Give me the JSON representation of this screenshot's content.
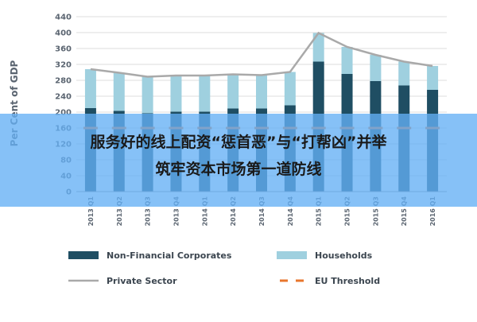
{
  "chart_data": {
    "type": "bar",
    "stacked": true,
    "categories": [
      "2013 Q1",
      "2013 Q2",
      "2013 Q3",
      "2013 Q4",
      "2014 Q1",
      "2014 Q2",
      "2014 Q3",
      "2014 Q4",
      "2015 Q1",
      "2015 Q2",
      "2015 Q3",
      "2015 Q4",
      "2016 Q1"
    ],
    "series": [
      {
        "name": "Non-Financial Corporates",
        "type": "bar",
        "color": "#1f4e63",
        "values": [
          210,
          203,
          197,
          201,
          201,
          209,
          209,
          217,
          327,
          296,
          278,
          267,
          256
        ]
      },
      {
        "name": "Households",
        "type": "bar",
        "color": "#9fd0df",
        "values": [
          98,
          96,
          92,
          91,
          91,
          86,
          84,
          84,
          72,
          68,
          66,
          60,
          60
        ]
      },
      {
        "name": "Private Sector",
        "type": "line",
        "color": "#a9a9a9",
        "values": [
          308,
          299,
          289,
          292,
          292,
          295,
          293,
          301,
          399,
          364,
          344,
          327,
          316
        ]
      },
      {
        "name": "EU Threshold",
        "type": "line-dashed",
        "color": "#e8762d",
        "values": [
          160,
          160,
          160,
          160,
          160,
          160,
          160,
          160,
          160,
          160,
          160,
          160,
          160
        ]
      }
    ],
    "ylabel": "Per Cent of GDP",
    "xlabel": "",
    "ylim": [
      0,
      440
    ],
    "yticks": [
      0,
      40,
      80,
      120,
      160,
      200,
      240,
      280,
      320,
      360,
      400,
      440
    ],
    "grid": true,
    "legend_position": "bottom"
  },
  "overlay": {
    "line1": "服务好的线上配资“惩首恶”与“打帮凶”并举",
    "line2": "筑牢资本市场第一道防线"
  }
}
